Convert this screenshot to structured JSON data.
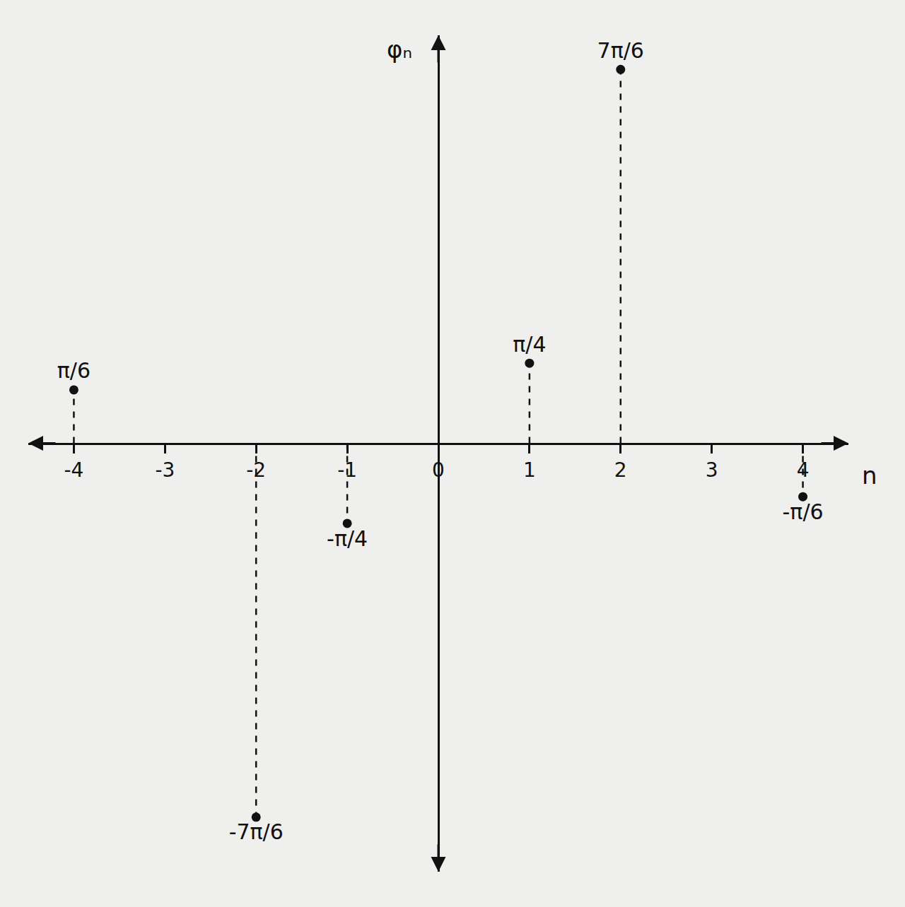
{
  "chart_data": {
    "type": "stem",
    "x_label": "n",
    "y_label": "φₙ",
    "x": [
      -4,
      -2,
      -1,
      1,
      2,
      4
    ],
    "values": [
      0.5236,
      -3.6652,
      -0.7854,
      0.7854,
      3.6652,
      -0.5236
    ],
    "value_labels": [
      "π/6",
      "-7π/6",
      "-π/4",
      "π/4",
      "7π/6",
      "-π/6"
    ],
    "xlim": [
      -4.5,
      4.5
    ],
    "xticks": [
      -4,
      -3,
      -2,
      -1,
      0,
      1,
      2,
      3,
      4
    ],
    "ylim": [
      -4.2,
      4.0
    ],
    "color": "#111111",
    "marker": "circle",
    "line_style": "dash",
    "data_labels": true,
    "tick_labels": "x",
    "grid": false
  }
}
